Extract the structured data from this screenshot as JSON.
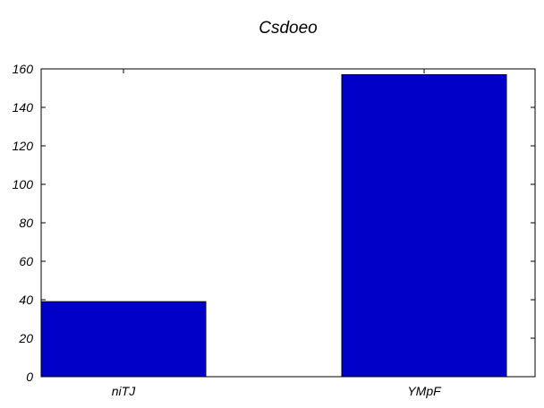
{
  "chart_data": {
    "type": "bar",
    "title": "Csdoeo",
    "categories": [
      "niTJ",
      "YMpF"
    ],
    "values": [
      39,
      157
    ],
    "xlabel": "",
    "ylabel": "",
    "ylim": [
      0,
      160
    ],
    "yticks": [
      0,
      20,
      40,
      60,
      80,
      100,
      120,
      140,
      160
    ],
    "grid": false,
    "bar_color": "#0000c8",
    "edge_color": "#000000"
  }
}
